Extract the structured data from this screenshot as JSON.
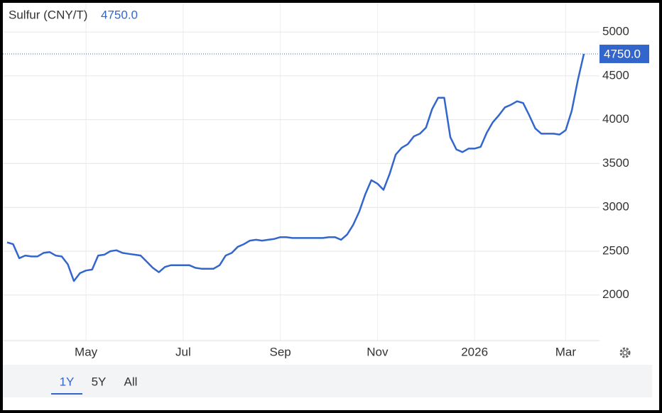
{
  "chart_data": {
    "type": "line",
    "title": "Sulfur (CNY/T)",
    "last_label": "4750.0",
    "categories": [
      "",
      null,
      null,
      null,
      null,
      null,
      null,
      null,
      null,
      null,
      null,
      null,
      null,
      "May",
      null,
      null,
      null,
      null,
      null,
      null,
      null,
      null,
      null,
      null,
      null,
      null,
      null,
      null,
      null,
      "Jul",
      null,
      null,
      null,
      null,
      null,
      null,
      null,
      null,
      null,
      null,
      null,
      null,
      null,
      null,
      null,
      "Sep",
      null,
      null,
      null,
      null,
      null,
      null,
      null,
      null,
      null,
      null,
      null,
      null,
      null,
      null,
      null,
      "Nov",
      null,
      null,
      null,
      null,
      null,
      null,
      null,
      null,
      null,
      null,
      null,
      null,
      null,
      null,
      null,
      "2026",
      null,
      null,
      null,
      null,
      null,
      null,
      null,
      null,
      null,
      null,
      null,
      null,
      null,
      null,
      "Mar",
      null,
      null,
      null
    ],
    "values": [
      2600,
      2580,
      2420,
      2450,
      2440,
      2440,
      2480,
      2490,
      2450,
      2440,
      2350,
      2160,
      2250,
      2280,
      2290,
      2450,
      2460,
      2500,
      2510,
      2480,
      2470,
      2460,
      2450,
      2380,
      2310,
      2260,
      2320,
      2340,
      2340,
      2340,
      2340,
      2310,
      2300,
      2300,
      2300,
      2340,
      2450,
      2480,
      2550,
      2580,
      2620,
      2630,
      2620,
      2630,
      2640,
      2660,
      2660,
      2650,
      2650,
      2650,
      2650,
      2650,
      2650,
      2660,
      2660,
      2630,
      2690,
      2800,
      2950,
      3150,
      3310,
      3270,
      3200,
      3380,
      3600,
      3680,
      3720,
      3810,
      3840,
      3910,
      4120,
      4250,
      4250,
      3800,
      3660,
      3630,
      3670,
      3670,
      3690,
      3850,
      3970,
      4050,
      4140,
      4170,
      4210,
      4190,
      4050,
      3900,
      3840,
      3840,
      3840,
      3830,
      3880,
      4100,
      4450,
      4750
    ],
    "color": "#3366cc",
    "ylim": [
      1480,
      5300
    ],
    "yticks": [
      2000,
      2500,
      3000,
      3500,
      4000,
      4500,
      5000
    ],
    "grid": true,
    "range_buttons": [
      "1Y",
      "5Y",
      "All"
    ]
  }
}
